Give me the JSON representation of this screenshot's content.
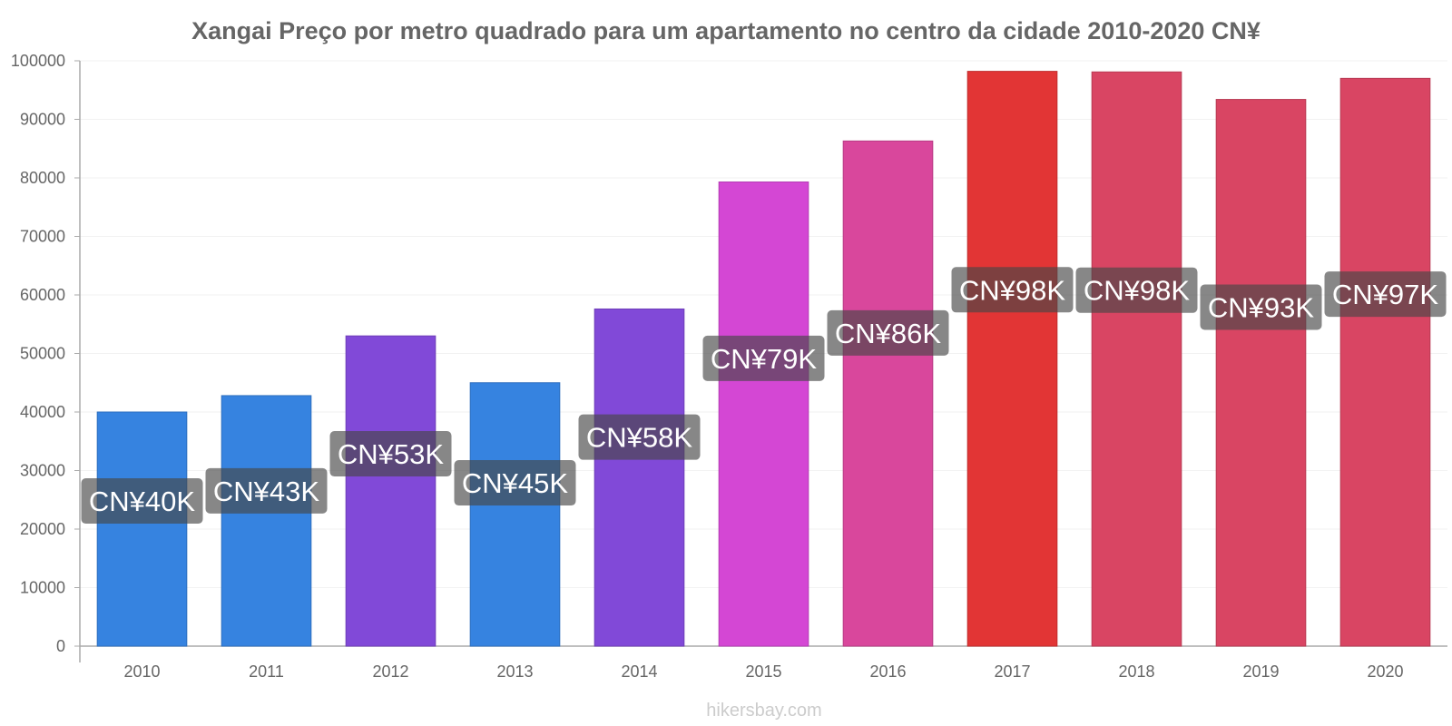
{
  "chart_data": {
    "type": "bar",
    "title": "Xangai Preço por metro quadrado para um apartamento no centro da cidade 2010-2020 CN¥",
    "xlabel": "",
    "ylabel": "",
    "ylim": [
      0,
      100000
    ],
    "yticks": [
      0,
      10000,
      20000,
      30000,
      40000,
      50000,
      60000,
      70000,
      80000,
      90000,
      100000
    ],
    "grid": true,
    "categories": [
      "2010",
      "2011",
      "2012",
      "2013",
      "2014",
      "2015",
      "2016",
      "2017",
      "2018",
      "2019",
      "2020"
    ],
    "values": [
      40000,
      42800,
      53000,
      45000,
      57600,
      79300,
      86300,
      98200,
      98100,
      93400,
      97000
    ],
    "data_labels": [
      "CN¥40K",
      "CN¥43K",
      "CN¥53K",
      "CN¥45K",
      "CN¥58K",
      "CN¥79K",
      "CN¥86K",
      "CN¥98K",
      "CN¥98K",
      "CN¥93K",
      "CN¥97K"
    ],
    "colors": [
      "#3683e0",
      "#3683e0",
      "#8149d8",
      "#3683e0",
      "#8149d8",
      "#d447d4",
      "#d9479c",
      "#e23535",
      "#d94563",
      "#d94563",
      "#d94563"
    ],
    "watermark": "hikersbay.com"
  }
}
